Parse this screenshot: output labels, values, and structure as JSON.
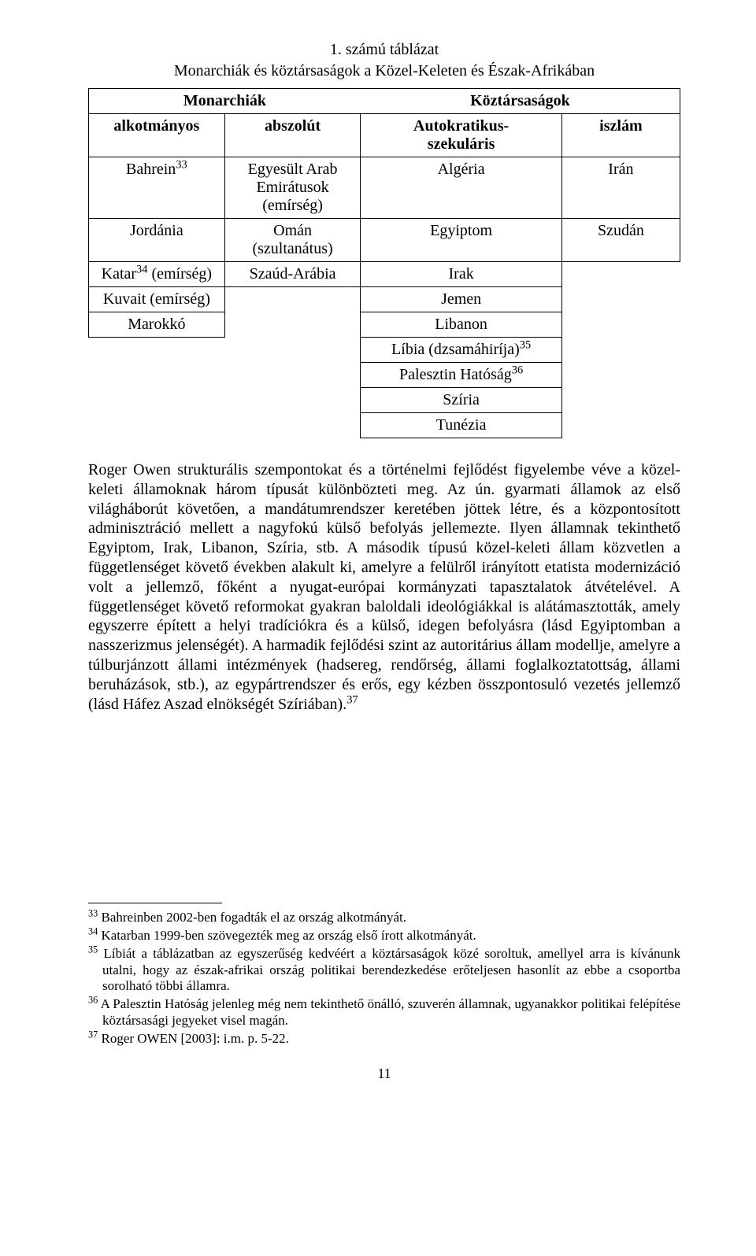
{
  "page_number": "11",
  "table": {
    "title": "1. számú táblázat",
    "subtitle": "Monarchiák és köztársaságok a Közel-Keleten és Észak-Afrikában",
    "head_mon": "Monarchiák",
    "head_rep": "Köztársaságok",
    "head_alk": "alkotmányos",
    "head_abs": "abszolút",
    "head_aut1": "Autokratikus-",
    "head_aut2": "szekuláris",
    "head_isl": "iszlám",
    "rows": [
      {
        "c1": "Bahrein",
        "c1_sup": "33",
        "c2a": "Egyesült Arab",
        "c2b": "Emirátusok",
        "c2c": "(emírség)",
        "c3": "Algéria",
        "c4": "Irán"
      },
      {
        "c1": "Jordánia",
        "c2": "Omán (szultanátus)",
        "c3": "Egyiptom",
        "c4": "Szudán"
      },
      {
        "c1": "Katar",
        "c1_sup": "34",
        "c1_tail": " (emírség)",
        "c2": "Szaúd-Arábia",
        "c3": "Irak"
      },
      {
        "c1": "Kuvait (emírség)",
        "c3": "Jemen"
      },
      {
        "c1": "Marokkó",
        "c3": "Libanon"
      },
      {
        "c3": "Líbia (dzsamáhiríja)",
        "c3_sup": "35"
      },
      {
        "c3": "Palesztin Hatóság",
        "c3_sup": "36"
      },
      {
        "c3": "Szíria"
      },
      {
        "c3": "Tunézia"
      }
    ]
  },
  "body_text": {
    "pre37": "Roger Owen strukturális szempontokat és a történelmi fejlődést figyelembe véve a közel-keleti államoknak három típusát különbözteti meg. Az ún. gyarmati államok az első világháborút követően, a mandátumrendszer keretében jöttek létre, és a központosított adminisztráció mellett a nagyfokú külső befolyás jellemezte. Ilyen államnak tekinthető Egyiptom, Irak, Libanon, Szíria, stb. A második típusú közel-keleti állam közvetlen a függetlenséget követő években alakult ki, amelyre a felülről irányított etatista modernizáció volt a jellemző, főként a nyugat-európai kormányzati tapasztalatok átvételével. A függetlenséget követő reformokat gyakran baloldali ideológiákkal is alátámasztották, amely egyszerre épített a helyi tradíciókra és a külső, idegen befolyásra (lásd Egyiptomban a nasszerizmus jelenségét). A harmadik fejlődési szint az autoritárius állam modellje, amelyre a túlburjánzott állami intézmények (hadsereg, rendőrség, állami foglalkoztatottság, állami beruházások, stb.), az egypártrendszer és erős, egy kézben összpontosuló vezetés jellemző (lásd Háfez Aszad elnökségét Szíriában).",
    "sup37": "37"
  },
  "footnotes": {
    "n33": "Bahreinben 2002-ben fogadták el az ország alkotmányát.",
    "n34": "Katarban 1999-ben szövegezték meg az ország első írott alkotmányát.",
    "n35": "Líbiát a táblázatban az egyszerűség kedvéért a köztársaságok közé soroltuk, amellyel arra is kívánunk utalni, hogy az észak-afrikai ország politikai berendezkedése erőteljesen hasonlít az ebbe a csoportba sorolható többi államra.",
    "n36": "A Palesztin Hatóság jelenleg még nem tekinthető önálló, szuverén államnak, ugyanakkor politikai felépítése köztársasági jegyeket visel magán.",
    "n37": "Roger OWEN [2003]: i.m. p. 5-22.",
    "m33": "33",
    "m34": "34",
    "m35": "35",
    "m36": "36",
    "m37": "37"
  }
}
